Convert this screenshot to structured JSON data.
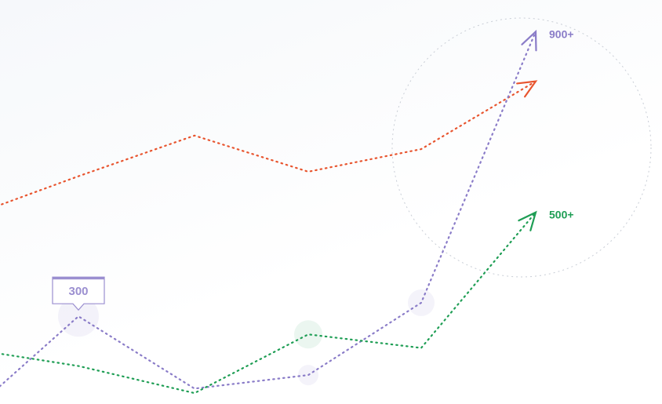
{
  "chart_data": {
    "type": "line",
    "title": "",
    "xlabel": "",
    "ylabel": "",
    "grid": false,
    "legend": "none",
    "x": [
      0,
      1,
      2,
      3,
      4,
      5
    ],
    "ylim": [
      0,
      1000
    ],
    "series": [
      {
        "key": "orange",
        "color": "#e8552f",
        "values": [
          540,
          610,
          700,
          620,
          670,
          820
        ],
        "end_label": ""
      },
      {
        "key": "purple",
        "color": "#8a7cc8",
        "values": [
          130,
          300,
          140,
          170,
          330,
          930
        ],
        "end_label": "900+"
      },
      {
        "key": "green",
        "color": "#1f9e55",
        "values": [
          220,
          190,
          130,
          260,
          230,
          530
        ],
        "end_label": "500+"
      }
    ],
    "tooltip": {
      "series": "purple",
      "index": 1,
      "text": "300",
      "color": "#9b8fd0"
    }
  }
}
